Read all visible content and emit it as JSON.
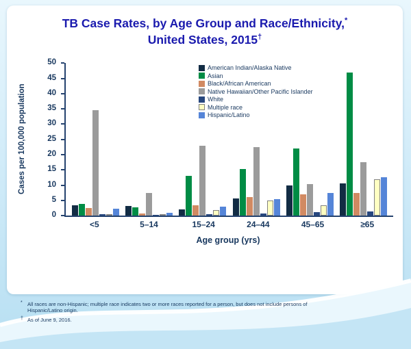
{
  "title": {
    "line1": "TB Case Rates, by Age Group and Race/Ethnicity,",
    "star": "*",
    "line2": "United States, 2015",
    "dagger": "†"
  },
  "chart_data": {
    "type": "bar",
    "title": "TB Case Rates, by Age Group and Race/Ethnicity, United States, 2015",
    "xlabel": "Age group (yrs)",
    "ylabel": "Cases per 100,000 population",
    "ylim": [
      0,
      50
    ],
    "ytick_step": 5,
    "grid": false,
    "legend_position": "top-right-inside",
    "categories": [
      "<5",
      "5–14",
      "15–24",
      "24–44",
      "45–65",
      "≥65"
    ],
    "series": [
      {
        "name": "American Indian/Alaska Native",
        "color": "#122c44",
        "values": [
          3.5,
          3.1,
          2.0,
          5.6,
          9.9,
          10.7
        ]
      },
      {
        "name": "Asian",
        "color": "#008c45",
        "values": [
          3.9,
          2.7,
          13.0,
          15.2,
          22.0,
          47.0
        ]
      },
      {
        "name": "Black/African American",
        "color": "#d18a62",
        "values": [
          2.5,
          0.8,
          3.4,
          6.1,
          7.0,
          7.4
        ]
      },
      {
        "name": "Native Hawaiian/Other Pacific Islander",
        "color": "#9b9b9b",
        "values": [
          34.5,
          7.5,
          23.0,
          22.5,
          10.4,
          17.5
        ]
      },
      {
        "name": "White",
        "color": "#27477e",
        "values": [
          0.6,
          0.3,
          0.6,
          0.8,
          1.1,
          1.4
        ]
      },
      {
        "name": "Multiple race",
        "color": "#ffffc2",
        "border": "#808080",
        "values": [
          0.5,
          0.3,
          1.9,
          5.0,
          3.4,
          12.0
        ]
      },
      {
        "name": "Hispanic/Latino",
        "color": "#5585d8",
        "values": [
          2.4,
          1.0,
          3.0,
          5.5,
          7.5,
          12.7
        ]
      }
    ]
  },
  "footnotes": [
    {
      "marker": "*",
      "text": "All races are non-Hispanic; multiple race indicates two or more races reported for a person, but does not include persons of Hispanic/Latino origin."
    },
    {
      "marker": "†",
      "text": "As of June 9, 2016."
    }
  ],
  "colors": {
    "title": "#1a1aae",
    "axis": "#24426e",
    "text": "#17375e"
  }
}
